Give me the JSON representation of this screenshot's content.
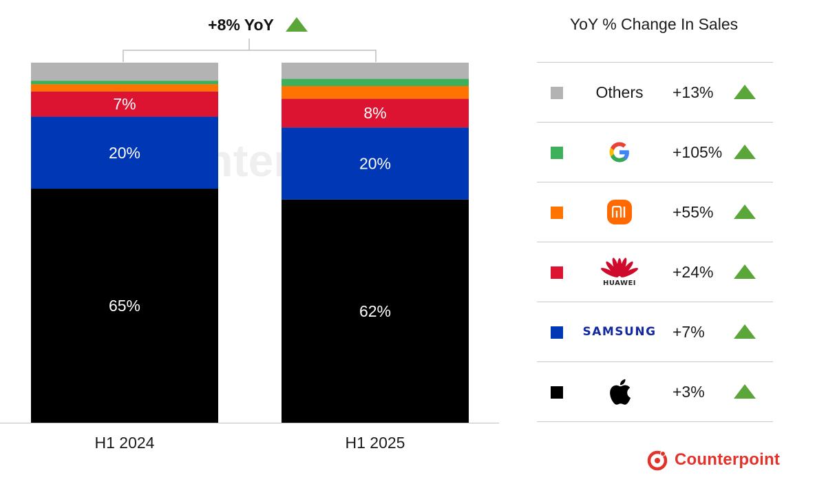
{
  "chart_data": {
    "type": "bar",
    "stacked": true,
    "normalized": true,
    "categories": [
      "H1 2024",
      "H1 2025"
    ],
    "series": [
      {
        "name": "Apple",
        "color": "#000000",
        "values": [
          65,
          62
        ],
        "labels": [
          "65%",
          "62%"
        ]
      },
      {
        "name": "Samsung",
        "color": "#0037b4",
        "values": [
          20,
          20
        ],
        "labels": [
          "20%",
          "20%"
        ]
      },
      {
        "name": "Huawei",
        "color": "#dc1431",
        "values": [
          7,
          8
        ],
        "labels": [
          "7%",
          "8%"
        ]
      },
      {
        "name": "Xiaomi",
        "color": "#ff7300",
        "values": [
          2,
          3.5
        ],
        "labels": [
          "",
          ""
        ]
      },
      {
        "name": "Google",
        "color": "#3cb05a",
        "values": [
          1,
          2
        ],
        "labels": [
          "",
          ""
        ]
      },
      {
        "name": "Others",
        "color": "#b3b3b3",
        "values": [
          5,
          4.5
        ],
        "labels": [
          "",
          ""
        ]
      }
    ],
    "ylim": [
      0,
      100
    ],
    "label_color": "#ffffff",
    "axis_line": "bottom"
  },
  "annotation": {
    "text": "+8% YoY",
    "direction": "up",
    "arrow_color": "#5aa638"
  },
  "legend": {
    "title": "YoY % Change In Sales",
    "rows": [
      {
        "brand": "Others",
        "brand_type": "text",
        "color": "#b3b3b3",
        "change": "+13%",
        "direction": "up"
      },
      {
        "brand": "Google",
        "brand_type": "google-logo-icon",
        "color": "#3cb05a",
        "change": "+105%",
        "direction": "up"
      },
      {
        "brand": "Xiaomi",
        "brand_type": "xiaomi-logo-icon",
        "color": "#ff7300",
        "change": "+55%",
        "direction": "up"
      },
      {
        "brand": "HUAWEI",
        "brand_type": "huawei-logo-icon",
        "color": "#dc1431",
        "change": "+24%",
        "direction": "up"
      },
      {
        "brand": "SAMSUNG",
        "brand_type": "samsung-wordmark",
        "color": "#0037b4",
        "change": "+7%",
        "direction": "up"
      },
      {
        "brand": "Apple",
        "brand_type": "apple-logo-icon",
        "color": "#000000",
        "change": "+3%",
        "direction": "up"
      }
    ]
  },
  "branding": {
    "name": "Counterpoint",
    "color": "#e4322b",
    "watermark": "Counterpoint"
  }
}
